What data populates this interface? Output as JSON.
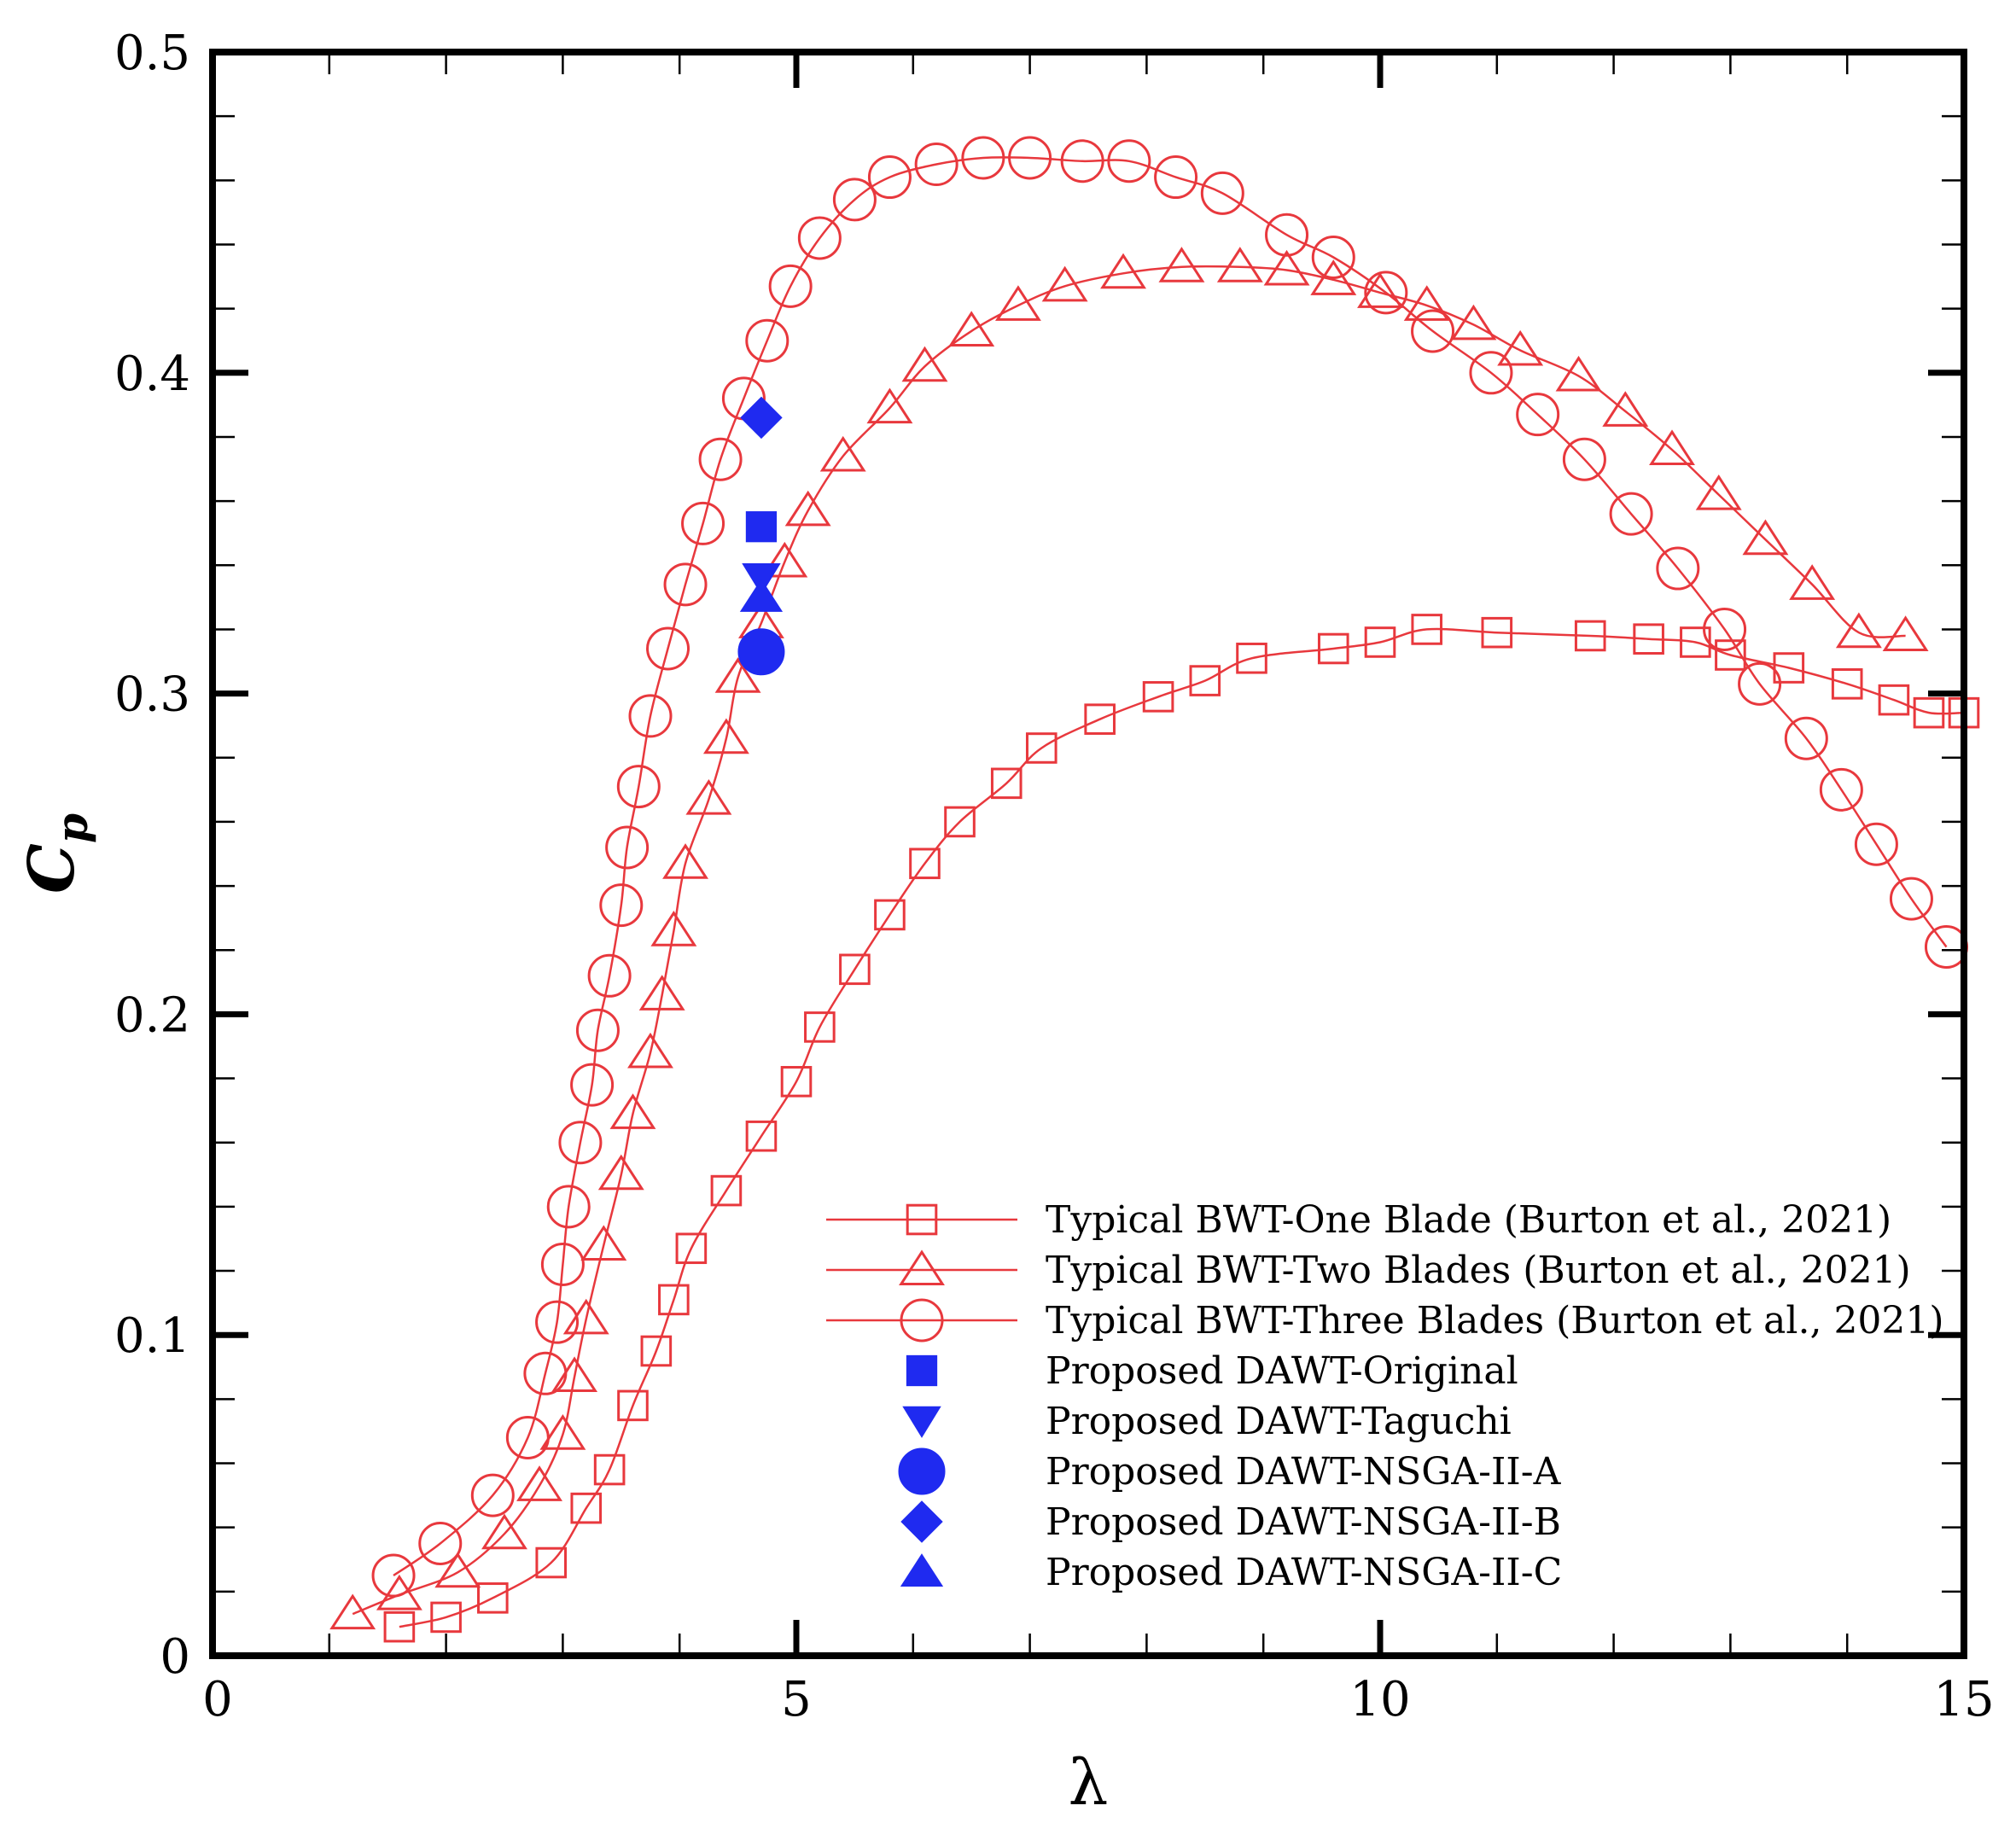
{
  "chart_data": {
    "type": "line",
    "title": "",
    "xlabel": "λ",
    "ylabel": {
      "main": "C",
      "sub": "p"
    },
    "xlim": [
      0,
      15
    ],
    "ylim": [
      0,
      0.5
    ],
    "x_ticks": [
      0,
      5,
      10,
      15
    ],
    "x_tick_labels": [
      "0",
      "5",
      "10",
      "15"
    ],
    "y_ticks": [
      0,
      0.1,
      0.2,
      0.3,
      0.4,
      0.5
    ],
    "y_tick_labels": [
      "0",
      "0.1",
      "0.2",
      "0.3",
      "0.4",
      "0.5"
    ],
    "x_minor_step": 1,
    "y_minor_step": 0.02,
    "grid": false,
    "legend_position": "bottom-right",
    "colors": {
      "red": "#e8383d",
      "blue": "#1f2af0",
      "axis": "#000000"
    },
    "series": [
      {
        "name": "Typical BWT-One Blade (Burton et al., 2021)",
        "marker": "square-open",
        "color": "#e8383d",
        "line": true,
        "x": [
          1.6,
          2.0,
          2.4,
          2.9,
          3.2,
          3.4,
          3.6,
          3.8,
          3.95,
          4.1,
          4.4,
          4.7,
          5.0,
          5.2,
          5.5,
          5.8,
          6.1,
          6.4,
          6.8,
          7.1,
          7.6,
          8.1,
          8.5,
          8.9,
          9.6,
          10.0,
          10.4,
          11.0,
          11.8,
          12.3,
          12.7,
          13.0,
          13.5,
          14.0,
          14.4,
          14.7,
          15.0
        ],
        "y": [
          0.009,
          0.012,
          0.018,
          0.029,
          0.046,
          0.058,
          0.078,
          0.095,
          0.111,
          0.127,
          0.145,
          0.162,
          0.179,
          0.196,
          0.214,
          0.231,
          0.247,
          0.26,
          0.272,
          0.283,
          0.292,
          0.299,
          0.304,
          0.311,
          0.314,
          0.316,
          0.32,
          0.319,
          0.318,
          0.317,
          0.316,
          0.312,
          0.308,
          0.303,
          0.298,
          0.294,
          0.294
        ]
      },
      {
        "name": "Typical BWT-Two Blades (Burton et al., 2021)",
        "marker": "triangle-open",
        "color": "#e8383d",
        "line": true,
        "x": [
          1.2,
          1.6,
          2.1,
          2.5,
          2.8,
          3.0,
          3.1,
          3.2,
          3.35,
          3.5,
          3.6,
          3.75,
          3.85,
          3.95,
          4.05,
          4.25,
          4.4,
          4.5,
          4.7,
          4.9,
          5.1,
          5.4,
          5.8,
          6.1,
          6.5,
          6.9,
          7.3,
          7.8,
          8.3,
          8.8,
          9.2,
          9.6,
          10.0,
          10.4,
          10.8,
          11.2,
          11.7,
          12.1,
          12.5,
          12.9,
          13.3,
          13.7,
          14.1,
          14.5
        ],
        "y": [
          0.013,
          0.019,
          0.026,
          0.038,
          0.053,
          0.069,
          0.087,
          0.105,
          0.128,
          0.15,
          0.169,
          0.188,
          0.206,
          0.226,
          0.247,
          0.267,
          0.286,
          0.305,
          0.322,
          0.341,
          0.357,
          0.374,
          0.389,
          0.402,
          0.413,
          0.421,
          0.427,
          0.431,
          0.433,
          0.433,
          0.432,
          0.429,
          0.425,
          0.421,
          0.415,
          0.407,
          0.399,
          0.388,
          0.376,
          0.362,
          0.348,
          0.334,
          0.319,
          0.318
        ]
      },
      {
        "name": "Typical BWT-Three Blades (Burton et al., 2021)",
        "marker": "circle-open",
        "color": "#e8383d",
        "line": true,
        "x": [
          1.55,
          1.95,
          2.4,
          2.7,
          2.85,
          2.95,
          3.0,
          3.05,
          3.15,
          3.25,
          3.3,
          3.4,
          3.5,
          3.55,
          3.65,
          3.75,
          3.9,
          4.05,
          4.2,
          4.35,
          4.55,
          4.75,
          4.95,
          5.2,
          5.5,
          5.8,
          6.2,
          6.6,
          7.0,
          7.45,
          7.85,
          8.25,
          8.65,
          9.2,
          9.6,
          10.05,
          10.45,
          10.95,
          11.35,
          11.75,
          12.15,
          12.55,
          12.95,
          13.25,
          13.65,
          13.95,
          14.25,
          14.55,
          14.85
        ],
        "y": [
          0.025,
          0.035,
          0.05,
          0.068,
          0.088,
          0.104,
          0.122,
          0.14,
          0.16,
          0.178,
          0.195,
          0.212,
          0.234,
          0.252,
          0.271,
          0.293,
          0.314,
          0.334,
          0.353,
          0.373,
          0.392,
          0.41,
          0.427,
          0.442,
          0.454,
          0.461,
          0.465,
          0.467,
          0.467,
          0.466,
          0.466,
          0.461,
          0.456,
          0.443,
          0.436,
          0.425,
          0.413,
          0.4,
          0.387,
          0.373,
          0.356,
          0.339,
          0.32,
          0.303,
          0.286,
          0.27,
          0.253,
          0.236,
          0.221
        ]
      },
      {
        "name": "Proposed DAWT-Original",
        "marker": "square-filled",
        "color": "#1f2af0",
        "line": false,
        "x": [
          4.7
        ],
        "y": [
          0.352
        ]
      },
      {
        "name": "Proposed DAWT-Taguchi",
        "marker": "triangle-down-filled",
        "color": "#1f2af0",
        "line": false,
        "x": [
          4.7
        ],
        "y": [
          0.336
        ]
      },
      {
        "name": "Proposed DAWT-NSGA-II-A",
        "marker": "circle-filled",
        "color": "#1f2af0",
        "line": false,
        "x": [
          4.7
        ],
        "y": [
          0.313
        ]
      },
      {
        "name": "Proposed DAWT-NSGA-II-B",
        "marker": "diamond-filled",
        "color": "#1f2af0",
        "line": false,
        "x": [
          4.7
        ],
        "y": [
          0.386
        ]
      },
      {
        "name": "Proposed DAWT-NSGA-II-C",
        "marker": "triangle-up-filled",
        "color": "#1f2af0",
        "line": false,
        "x": [
          4.7
        ],
        "y": [
          0.33
        ]
      }
    ]
  }
}
